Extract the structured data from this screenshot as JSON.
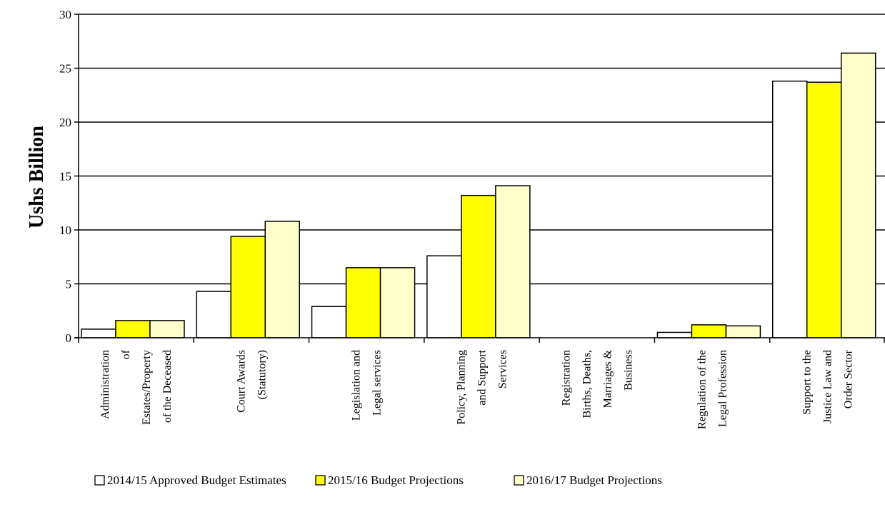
{
  "chart_data": {
    "type": "bar",
    "title": "",
    "xlabel": "",
    "ylabel": "Ushs Billion",
    "ylim": [
      0,
      30
    ],
    "yticks": [
      0,
      5,
      10,
      15,
      20,
      25,
      30
    ],
    "grid": true,
    "legend_position": "bottom",
    "categories": [
      [
        "Administration",
        "of",
        "Estates/Property",
        "of the Deceased"
      ],
      [
        "Court Awards",
        "(Statutory)"
      ],
      [
        "Legislation and",
        "Legal services"
      ],
      [
        "Policy, Planning",
        "and Support",
        "Services"
      ],
      [
        "Registration",
        "Births, Deaths,",
        "Marriages &",
        "Business"
      ],
      [
        "Regulation of the",
        "Legal Profession"
      ],
      [
        "Support to the",
        "Justice Law and",
        "Order Sector"
      ]
    ],
    "series": [
      {
        "name": "2014/15 Approved Budget Estimates",
        "color": "#ffffff",
        "values": [
          0.8,
          4.3,
          2.9,
          7.6,
          0,
          0.5,
          23.8
        ]
      },
      {
        "name": "2015/16 Budget Projections",
        "color": "#ffff00",
        "values": [
          1.6,
          9.4,
          6.5,
          13.2,
          0,
          1.2,
          23.7
        ]
      },
      {
        "name": "2016/17 Budget Projections",
        "color": "#ffffcc",
        "values": [
          1.6,
          10.8,
          6.5,
          14.1,
          0,
          1.1,
          26.4
        ]
      }
    ]
  }
}
